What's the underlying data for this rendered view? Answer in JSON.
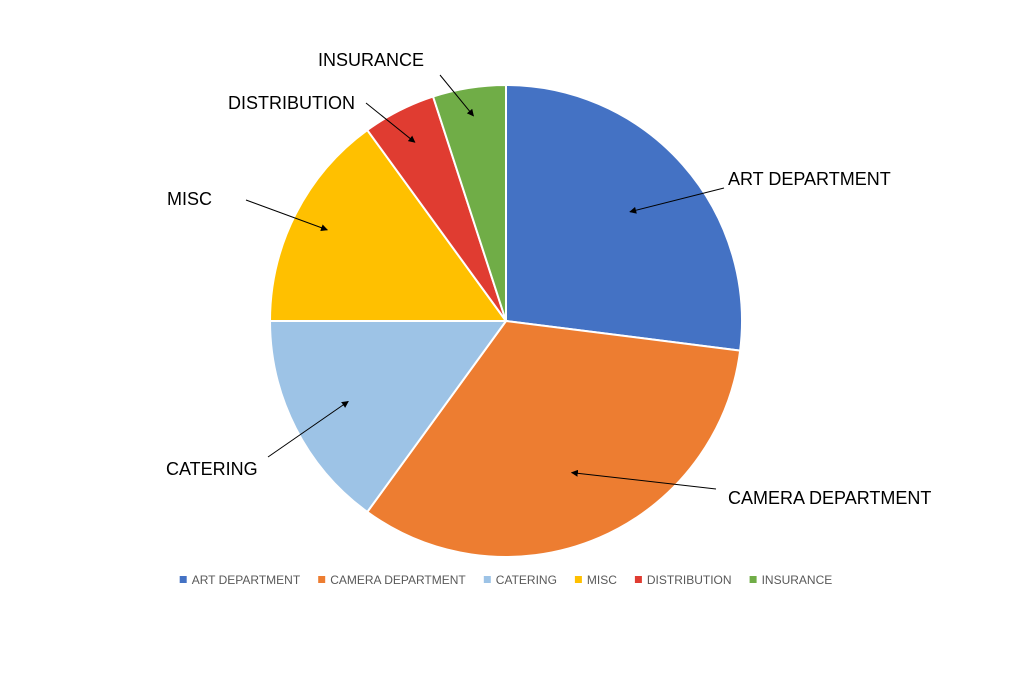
{
  "chart_data": {
    "type": "pie",
    "title": "",
    "categories": [
      "ART DEPARTMENT",
      "CAMERA DEPARTMENT",
      "CATERING",
      "MISC",
      "DISTRIBUTION",
      "INSURANCE"
    ],
    "values": [
      27,
      33,
      15,
      15,
      5,
      5
    ],
    "colors": [
      "#4472C4",
      "#ED7D31",
      "#9DC3E6",
      "#FFC000",
      "#E03C31",
      "#70AD47"
    ],
    "data_labels": [
      "ART DEPARTMENT",
      "CAMERA DEPARTMENT",
      "CATERING",
      "MISC",
      "DISTRIBUTION",
      "INSURANCE"
    ],
    "legend": {
      "position": "bottom",
      "entries": [
        "ART DEPARTMENT",
        "CAMERA DEPARTMENT",
        "CATERING",
        "MISC",
        "DISTRIBUTION",
        "INSURANCE"
      ]
    },
    "start_angle_deg": 0,
    "direction": "clockwise"
  }
}
